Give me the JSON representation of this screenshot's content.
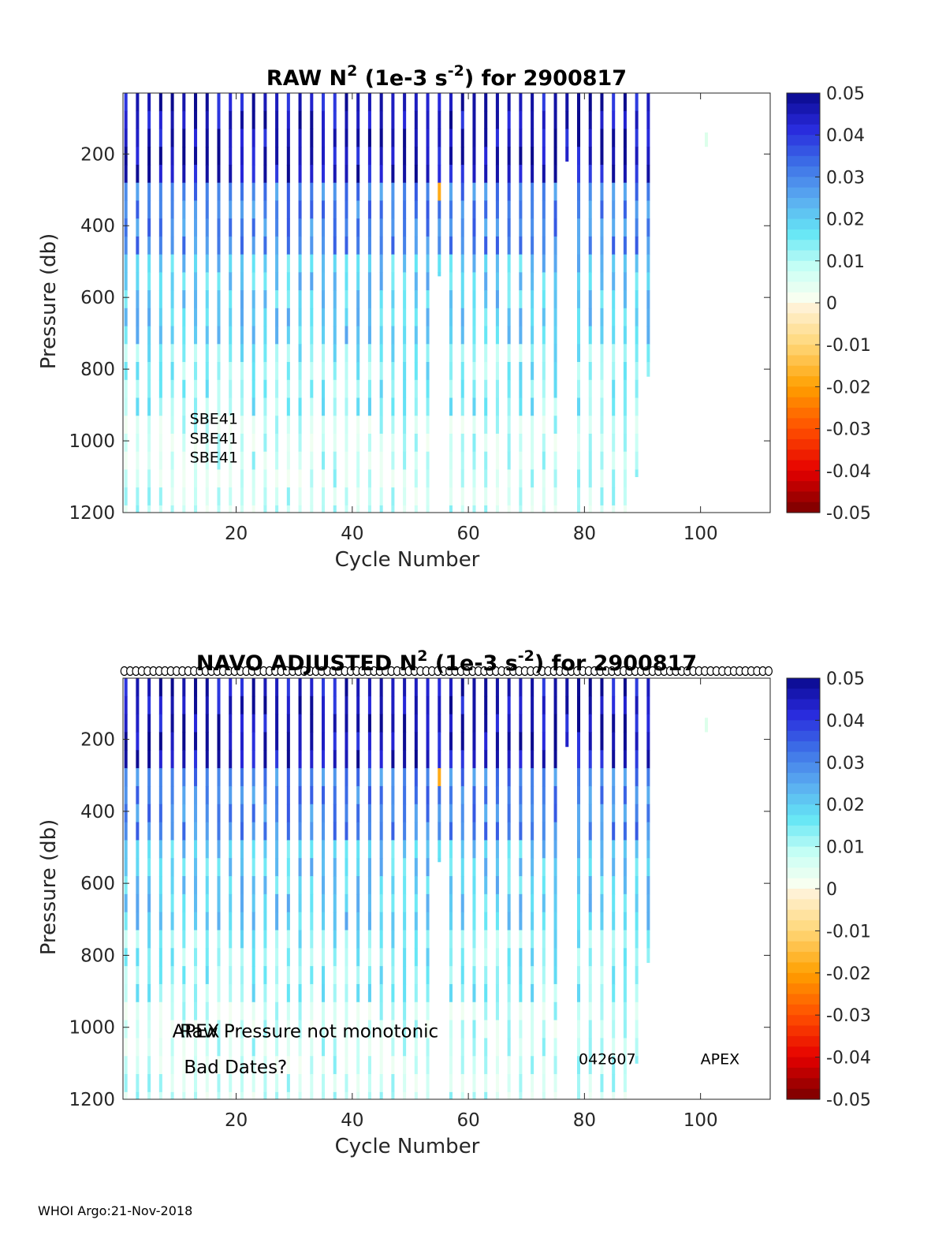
{
  "footer": "WHOI Argo:21-Nov-2018",
  "chart_data": [
    {
      "type": "heatmap",
      "title_parts": [
        "RAW N",
        "2",
        " (1e-3 s",
        "-2",
        ") for 2900817"
      ],
      "xlabel": "Cycle Number",
      "ylabel": "Pressure (db)",
      "xlim": [
        0.5,
        112
      ],
      "ylim": [
        1200,
        30
      ],
      "xticks": [
        20,
        40,
        60,
        80,
        100
      ],
      "yticks": [
        200,
        400,
        600,
        800,
        1000,
        1200
      ],
      "colorbar": {
        "min": -0.05,
        "max": 0.05,
        "ticks": [
          "0.05",
          "0.04",
          "0.03",
          "0.02",
          "0.01",
          "0",
          "-0.01",
          "-0.02",
          "-0.03",
          "-0.04",
          "-0.05"
        ]
      },
      "annotations": [
        {
          "text": "SBE41",
          "x": 12,
          "y": 935,
          "size": "small"
        },
        {
          "text": "SBE41",
          "x": 12,
          "y": 990,
          "size": "small"
        },
        {
          "text": "SBE41",
          "x": 12,
          "y": 1043,
          "size": "small"
        }
      ],
      "cycle_circles": false
    },
    {
      "type": "heatmap",
      "title_parts": [
        "NAVO  ADJUSTED N",
        "2",
        " (1e-3 s",
        "-2",
        ") for 2900817"
      ],
      "xlabel": "Cycle Number",
      "ylabel": "Pressure (db)",
      "xlim": [
        0.5,
        112
      ],
      "ylim": [
        1200,
        30
      ],
      "xticks": [
        20,
        40,
        60,
        80,
        100
      ],
      "yticks": [
        200,
        400,
        600,
        800,
        1000,
        1200
      ],
      "colorbar": {
        "min": -0.05,
        "max": 0.05,
        "ticks": [
          "0.05",
          "0.04",
          "0.03",
          "0.02",
          "0.01",
          "0",
          "-0.01",
          "-0.02",
          "-0.03",
          "-0.04",
          "-0.05"
        ]
      },
      "annotations": [
        {
          "text": "APEX",
          "x": 9,
          "y": 1010,
          "size": "large"
        },
        {
          "text": "Raw Pressure not monotonic",
          "x": 10.3,
          "y": 1010,
          "size": "large"
        },
        {
          "text": "Bad Dates?",
          "x": 11,
          "y": 1110,
          "size": "large"
        },
        {
          "text": "042607",
          "x": 79,
          "y": 1085,
          "size": "small"
        },
        {
          "text": "APEX",
          "x": 100,
          "y": 1085,
          "size": "small"
        }
      ],
      "cycle_circles": true
    }
  ]
}
